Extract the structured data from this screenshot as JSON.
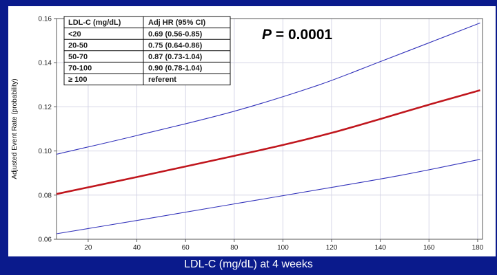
{
  "chart_data": {
    "type": "line",
    "xlabel": "LDL-C (mg/dL) at 4 weeks",
    "ylabel": "Adjusted Event Rate (probability)",
    "xlim": [
      7,
      182
    ],
    "ylim": [
      0.06,
      0.16
    ],
    "x_ticks": [
      20,
      40,
      60,
      80,
      100,
      120,
      140,
      160,
      180
    ],
    "y_ticks": [
      0.06,
      0.08,
      0.1,
      0.12,
      0.14,
      0.16
    ],
    "y_tick_labels": [
      "0.06",
      "0.08",
      "0.10",
      "0.12",
      "0.14",
      "0.16"
    ],
    "grid": true,
    "annotation": "P = 0.0001",
    "series": [
      {
        "role": "estimate",
        "color": "#c0161d",
        "x": [
          7,
          40,
          80,
          100,
          120,
          140,
          160,
          181
        ],
        "y": [
          0.0805,
          0.0882,
          0.0978,
          0.1027,
          0.1082,
          0.1145,
          0.121,
          0.1275
        ]
      },
      {
        "role": "upper",
        "color": "#3333bb",
        "x": [
          7,
          40,
          80,
          115,
          140,
          160,
          181
        ],
        "y": [
          0.0985,
          0.107,
          0.118,
          0.13,
          0.1405,
          0.149,
          0.158
        ]
      },
      {
        "role": "lower",
        "color": "#3333bb",
        "x": [
          7,
          40,
          80,
          120,
          150,
          181
        ],
        "y": [
          0.0625,
          0.0685,
          0.076,
          0.0835,
          0.0893,
          0.0962
        ]
      }
    ],
    "table": {
      "headers": [
        "LDL-C (mg/dL)",
        "Adj HR (95% CI)"
      ],
      "rows": [
        [
          "<20",
          "0.69 (0.56-0.85)"
        ],
        [
          "20-50",
          "0.75 (0.64-0.86)"
        ],
        [
          "50-70",
          "0.87 (0.73-1.04)"
        ],
        [
          "70-100",
          "0.90 (0.78-1.04)"
        ],
        [
          "≥ 100",
          "referent"
        ]
      ]
    }
  }
}
